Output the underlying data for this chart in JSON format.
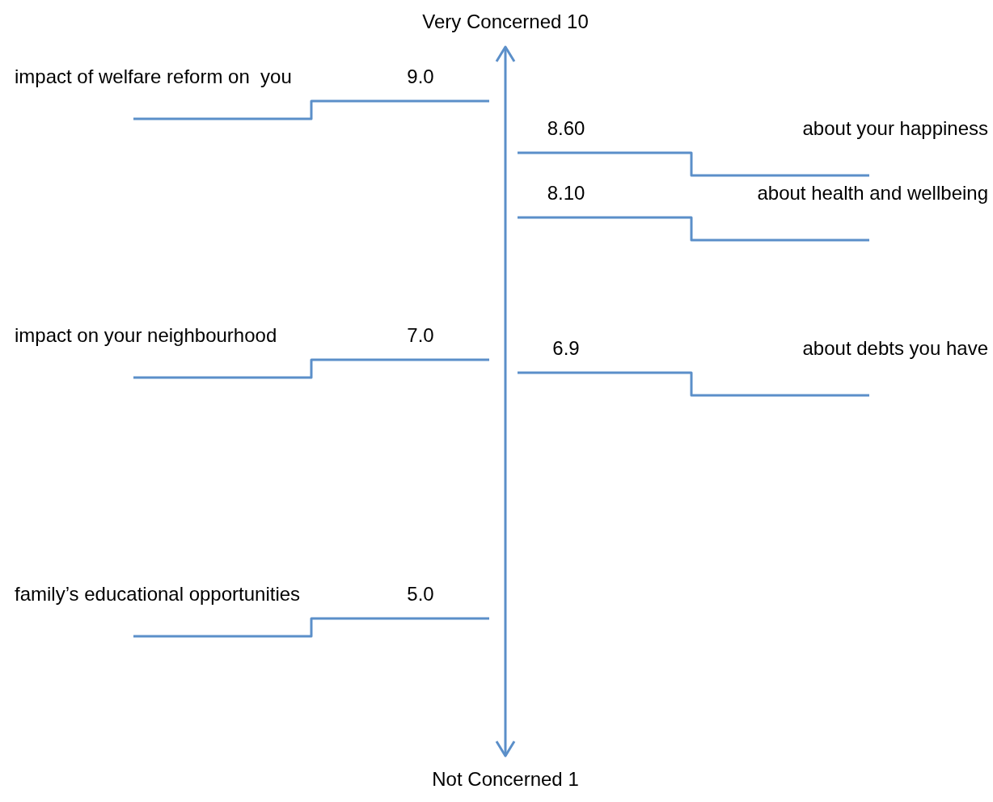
{
  "chart_data": {
    "type": "other",
    "categories": [
      "impact of welfare reform on  you",
      "about your happiness",
      "impact on your neighbourhood",
      "about health and wellbeing",
      "family’s educational opportunities",
      "about debts you have"
    ],
    "values": [
      9.0,
      8.6,
      7.0,
      8.1,
      5.0,
      6.9
    ],
    "value_labels": [
      "9.0",
      "8.60",
      "7.0",
      "8.10",
      "5.0",
      "6.9"
    ],
    "color": "#5b8fc9",
    "annotations": [
      "Very Concerned 10",
      "Not Concerned 1"
    ]
  }
}
